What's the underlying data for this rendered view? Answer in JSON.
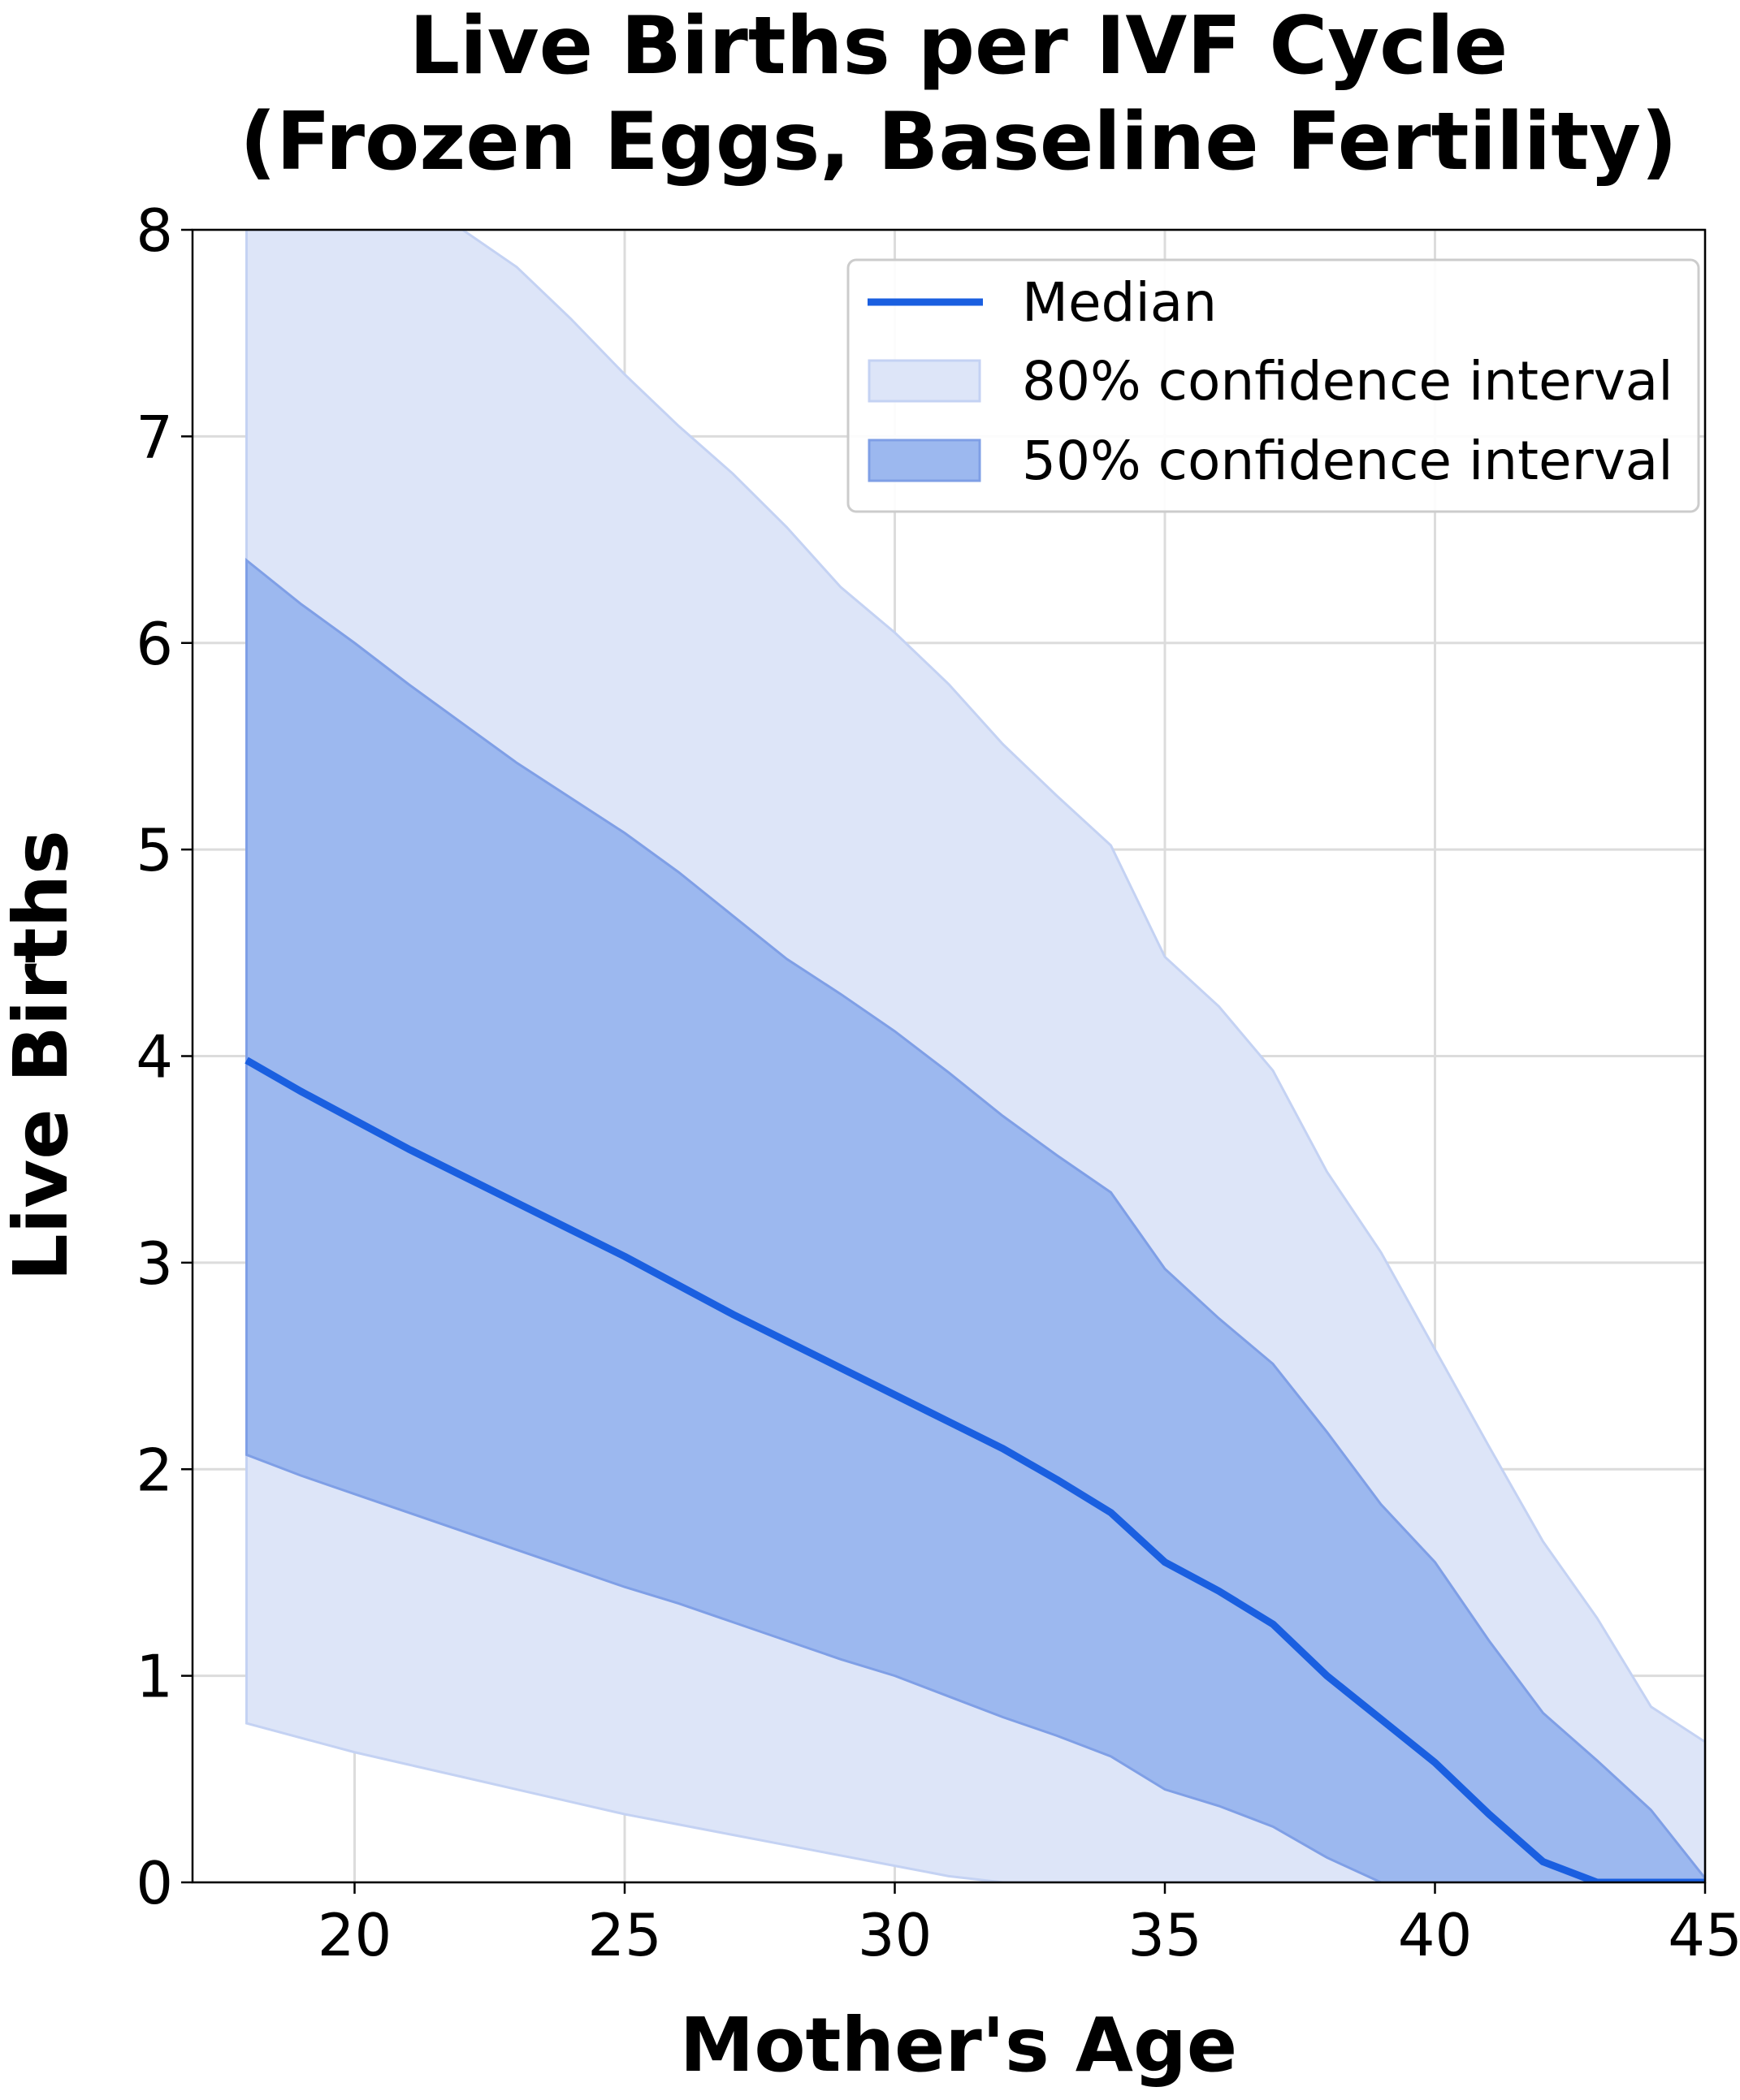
{
  "colors": {
    "median": "#1a5fe0",
    "ci80": "#dde5f8",
    "ci80_edge": "#c4d2f3",
    "ci50": "#9cb8ef",
    "ci50_edge": "#7f9fe6",
    "grid": "#dcdcdc",
    "background": "#ffffff",
    "axis": "#000000"
  },
  "chart_data": {
    "type": "line",
    "title_lines": [
      "Live Births per IVF Cycle",
      "(Frozen Eggs, Baseline Fertility)"
    ],
    "xlabel": "Mother's Age",
    "ylabel": "Live Births",
    "xlim": [
      17,
      45
    ],
    "ylim": [
      0,
      8
    ],
    "xticks": [
      20,
      25,
      30,
      35,
      40,
      45
    ],
    "yticks": [
      0,
      1,
      2,
      3,
      4,
      5,
      6,
      7,
      8
    ],
    "grid": true,
    "legend_position": "top-right",
    "legend": [
      "Median",
      "80% confidence interval",
      "50% confidence interval"
    ],
    "x": [
      18,
      19,
      20,
      21,
      22,
      23,
      24,
      25,
      26,
      27,
      28,
      29,
      30,
      31,
      32,
      33,
      34,
      35,
      36,
      37,
      38,
      39,
      40,
      41,
      42,
      43,
      44,
      45
    ],
    "series": [
      {
        "name": "Median",
        "kind": "line",
        "values": [
          3.98,
          3.83,
          3.69,
          3.55,
          3.42,
          3.29,
          3.16,
          3.03,
          2.89,
          2.75,
          2.62,
          2.49,
          2.36,
          2.23,
          2.1,
          1.95,
          1.79,
          1.55,
          1.41,
          1.25,
          1.0,
          0.79,
          0.58,
          0.33,
          0.1,
          0.0,
          0.0,
          0.0
        ]
      },
      {
        "name": "80% confidence interval",
        "kind": "band",
        "lower": [
          0.77,
          0.7,
          0.63,
          0.57,
          0.51,
          0.45,
          0.39,
          0.33,
          0.28,
          0.23,
          0.18,
          0.13,
          0.08,
          0.03,
          0.0,
          0.0,
          0.0,
          0.0,
          0.0,
          0.0,
          0.0,
          0.0,
          0.0,
          0.0,
          0.0,
          0.0,
          0.0,
          0.0
        ],
        "upper": [
          8.0,
          8.0,
          8.0,
          8.0,
          8.0,
          7.82,
          7.57,
          7.3,
          7.05,
          6.82,
          6.56,
          6.27,
          6.05,
          5.8,
          5.51,
          5.26,
          5.02,
          4.48,
          4.24,
          3.93,
          3.44,
          3.05,
          2.58,
          2.11,
          1.65,
          1.28,
          0.85,
          0.68
        ]
      },
      {
        "name": "50% confidence interval",
        "kind": "band",
        "lower": [
          2.07,
          1.97,
          1.88,
          1.79,
          1.7,
          1.61,
          1.52,
          1.43,
          1.35,
          1.26,
          1.17,
          1.08,
          1.0,
          0.9,
          0.8,
          0.71,
          0.61,
          0.45,
          0.37,
          0.27,
          0.12,
          0.0,
          0.0,
          0.0,
          0.0,
          0.0,
          0.0,
          0.0
        ],
        "upper": [
          6.4,
          6.19,
          6.0,
          5.8,
          5.61,
          5.42,
          5.25,
          5.08,
          4.89,
          4.68,
          4.47,
          4.3,
          4.12,
          3.92,
          3.71,
          3.52,
          3.34,
          2.97,
          2.73,
          2.51,
          2.18,
          1.83,
          1.55,
          1.17,
          0.82,
          0.59,
          0.35,
          0.02
        ]
      }
    ]
  }
}
